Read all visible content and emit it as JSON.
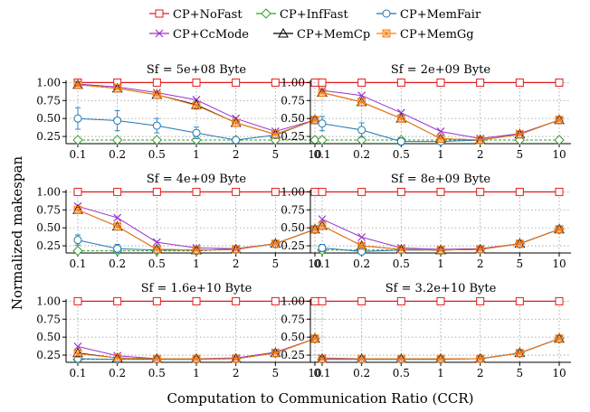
{
  "figure": {
    "ylabel": "Normalized makespan",
    "xlabel": "Computation to Communication Ratio (CCR)"
  },
  "legend": {
    "placement": "top",
    "entries": [
      {
        "label": "CP+NoFast",
        "color": "#e31a1c",
        "marker": "square"
      },
      {
        "label": "CP+InfFast",
        "color": "#33a02c",
        "marker": "diamond"
      },
      {
        "label": "CP+MemFair",
        "color": "#1f78b4",
        "marker": "circle"
      },
      {
        "label": "CP+CcMode",
        "color": "#9933cc",
        "marker": "x"
      },
      {
        "label": "CP+MemCp",
        "color": "#000000",
        "marker": "triangle"
      },
      {
        "label": "CP+MemGg",
        "color": "#ff7f0e",
        "marker": "asterisk-square"
      }
    ]
  },
  "chart_data": [
    {
      "type": "line",
      "title": "Sf = 5e+08 Byte",
      "categories": [
        "0.1",
        "0.2",
        "0.5",
        "1",
        "2",
        "5",
        "10"
      ],
      "ylim": [
        0.15,
        1.03
      ],
      "yticks": [
        "0.25",
        "0.50",
        "0.75",
        "1.00"
      ],
      "grid": true,
      "series": [
        {
          "name": "CP+NoFast",
          "values": [
            1.0,
            1.0,
            1.0,
            1.0,
            1.0,
            1.0,
            1.0
          ]
        },
        {
          "name": "CP+InfFast",
          "values": [
            0.2,
            0.2,
            0.2,
            0.2,
            0.2,
            0.2,
            0.2
          ]
        },
        {
          "name": "CP+MemFair",
          "values": [
            0.5,
            0.47,
            0.4,
            0.3,
            0.2,
            0.27,
            0.48
          ],
          "err": [
            0.15,
            0.14,
            0.1,
            0.08,
            0.03,
            0,
            0
          ]
        },
        {
          "name": "CP+CcMode",
          "values": [
            0.98,
            0.94,
            0.86,
            0.76,
            0.5,
            0.32,
            0.48
          ]
        },
        {
          "name": "CP+MemCp",
          "values": [
            0.97,
            0.92,
            0.83,
            0.69,
            0.44,
            0.28,
            0.48
          ]
        },
        {
          "name": "CP+MemGg",
          "values": [
            0.97,
            0.92,
            0.83,
            0.68,
            0.44,
            0.28,
            0.48
          ]
        }
      ]
    },
    {
      "type": "line",
      "title": "Sf = 2e+09 Byte",
      "categories": [
        "0.1",
        "0.2",
        "0.5",
        "1",
        "2",
        "5",
        "10"
      ],
      "ylim": [
        0.15,
        1.03
      ],
      "yticks": [
        "0.25",
        "0.50",
        "0.75",
        "1.00"
      ],
      "grid": true,
      "series": [
        {
          "name": "CP+NoFast",
          "values": [
            1.0,
            1.0,
            1.0,
            1.0,
            1.0,
            1.0,
            1.0
          ]
        },
        {
          "name": "CP+InfFast",
          "values": [
            0.2,
            0.2,
            0.2,
            0.2,
            0.2,
            0.2,
            0.2
          ]
        },
        {
          "name": "CP+MemFair",
          "values": [
            0.43,
            0.34,
            0.18,
            0.18,
            0.2,
            0.28,
            0.48
          ],
          "err": [
            0.1,
            0.1,
            0.05,
            0.03,
            0.02,
            0,
            0
          ]
        },
        {
          "name": "CP+CcMode",
          "values": [
            0.89,
            0.82,
            0.58,
            0.32,
            0.22,
            0.29,
            0.48
          ]
        },
        {
          "name": "CP+MemCp",
          "values": [
            0.86,
            0.73,
            0.5,
            0.22,
            0.2,
            0.28,
            0.48
          ]
        },
        {
          "name": "CP+MemGg",
          "values": [
            0.86,
            0.73,
            0.5,
            0.22,
            0.2,
            0.28,
            0.48
          ]
        }
      ]
    },
    {
      "type": "line",
      "title": "Sf = 4e+09 Byte",
      "categories": [
        "0.1",
        "0.2",
        "0.5",
        "1",
        "2",
        "5",
        "10"
      ],
      "ylim": [
        0.15,
        1.03
      ],
      "yticks": [
        "0.25",
        "0.50",
        "0.75",
        "1.00"
      ],
      "grid": true,
      "series": [
        {
          "name": "CP+NoFast",
          "values": [
            1.0,
            1.0,
            1.0,
            1.0,
            1.0,
            1.0,
            1.0
          ]
        },
        {
          "name": "CP+InfFast",
          "values": [
            0.18,
            0.18,
            0.18,
            0.18,
            0.2,
            0.28,
            0.48
          ]
        },
        {
          "name": "CP+MemFair",
          "values": [
            0.33,
            0.21,
            0.19,
            0.19,
            0.2,
            0.28,
            0.48
          ],
          "err": [
            0.07,
            0.06,
            0.03,
            0.02,
            0.02,
            0,
            0
          ]
        },
        {
          "name": "CP+CcMode",
          "values": [
            0.8,
            0.64,
            0.3,
            0.22,
            0.21,
            0.28,
            0.48
          ]
        },
        {
          "name": "CP+MemCp",
          "values": [
            0.75,
            0.52,
            0.2,
            0.19,
            0.2,
            0.28,
            0.48
          ]
        },
        {
          "name": "CP+MemGg",
          "values": [
            0.75,
            0.52,
            0.2,
            0.19,
            0.2,
            0.28,
            0.48
          ]
        }
      ]
    },
    {
      "type": "line",
      "title": "Sf = 8e+09 Byte",
      "categories": [
        "0.1",
        "0.2",
        "0.5",
        "1",
        "2",
        "5",
        "10"
      ],
      "ylim": [
        0.15,
        1.03
      ],
      "yticks": [
        "0.25",
        "0.50",
        "0.75",
        "1.00"
      ],
      "grid": true,
      "series": [
        {
          "name": "CP+NoFast",
          "values": [
            1.0,
            1.0,
            1.0,
            1.0,
            1.0,
            1.0,
            1.0
          ]
        },
        {
          "name": "CP+InfFast",
          "values": [
            0.19,
            0.19,
            0.19,
            0.19,
            0.2,
            0.28,
            0.48
          ]
        },
        {
          "name": "CP+MemFair",
          "values": [
            0.22,
            0.17,
            0.19,
            0.19,
            0.2,
            0.28,
            0.48
          ],
          "err": [
            0.05,
            0.04,
            0.02,
            0.02,
            0.02,
            0,
            0
          ]
        },
        {
          "name": "CP+CcMode",
          "values": [
            0.62,
            0.37,
            0.22,
            0.2,
            0.21,
            0.28,
            0.48
          ]
        },
        {
          "name": "CP+MemCp",
          "values": [
            0.53,
            0.25,
            0.2,
            0.19,
            0.2,
            0.28,
            0.48
          ]
        },
        {
          "name": "CP+MemGg",
          "values": [
            0.53,
            0.25,
            0.2,
            0.19,
            0.2,
            0.28,
            0.48
          ]
        }
      ]
    },
    {
      "type": "line",
      "title": "Sf = 1.6e+10 Byte",
      "categories": [
        "0.1",
        "0.2",
        "0.5",
        "1",
        "2",
        "5",
        "10"
      ],
      "ylim": [
        0.15,
        1.03
      ],
      "yticks": [
        "0.25",
        "0.50",
        "0.75",
        "1.00"
      ],
      "grid": true,
      "series": [
        {
          "name": "CP+NoFast",
          "values": [
            1.0,
            1.0,
            1.0,
            1.0,
            1.0,
            1.0,
            1.0
          ]
        },
        {
          "name": "CP+InfFast",
          "values": [
            0.19,
            0.19,
            0.19,
            0.19,
            0.2,
            0.28,
            0.48
          ]
        },
        {
          "name": "CP+MemFair",
          "values": [
            0.2,
            0.19,
            0.19,
            0.19,
            0.2,
            0.28,
            0.48
          ],
          "err": [
            0.03,
            0.02,
            0.02,
            0.02,
            0.02,
            0,
            0
          ]
        },
        {
          "name": "CP+CcMode",
          "values": [
            0.37,
            0.24,
            0.2,
            0.2,
            0.21,
            0.29,
            0.48
          ]
        },
        {
          "name": "CP+MemCp",
          "values": [
            0.28,
            0.21,
            0.2,
            0.2,
            0.2,
            0.28,
            0.48
          ]
        },
        {
          "name": "CP+MemGg",
          "values": [
            0.27,
            0.21,
            0.2,
            0.2,
            0.2,
            0.28,
            0.48
          ]
        }
      ]
    },
    {
      "type": "line",
      "title": "Sf = 3.2e+10 Byte",
      "categories": [
        "0.1",
        "0.2",
        "0.5",
        "1",
        "2",
        "5",
        "10"
      ],
      "ylim": [
        0.15,
        1.03
      ],
      "yticks": [
        "0.25",
        "0.50",
        "0.75",
        "1.00"
      ],
      "grid": true,
      "series": [
        {
          "name": "CP+NoFast",
          "values": [
            1.0,
            1.0,
            1.0,
            1.0,
            1.0,
            1.0,
            1.0
          ]
        },
        {
          "name": "CP+InfFast",
          "values": [
            0.19,
            0.19,
            0.19,
            0.19,
            0.2,
            0.28,
            0.48
          ]
        },
        {
          "name": "CP+MemFair",
          "values": [
            0.19,
            0.19,
            0.19,
            0.19,
            0.2,
            0.28,
            0.48
          ],
          "err": [
            0.02,
            0.02,
            0.02,
            0.02,
            0.02,
            0,
            0
          ]
        },
        {
          "name": "CP+CcMode",
          "values": [
            0.21,
            0.2,
            0.2,
            0.2,
            0.2,
            0.28,
            0.48
          ]
        },
        {
          "name": "CP+MemCp",
          "values": [
            0.2,
            0.2,
            0.2,
            0.2,
            0.2,
            0.28,
            0.48
          ]
        },
        {
          "name": "CP+MemGg",
          "values": [
            0.2,
            0.2,
            0.2,
            0.2,
            0.2,
            0.28,
            0.48
          ]
        }
      ]
    }
  ]
}
